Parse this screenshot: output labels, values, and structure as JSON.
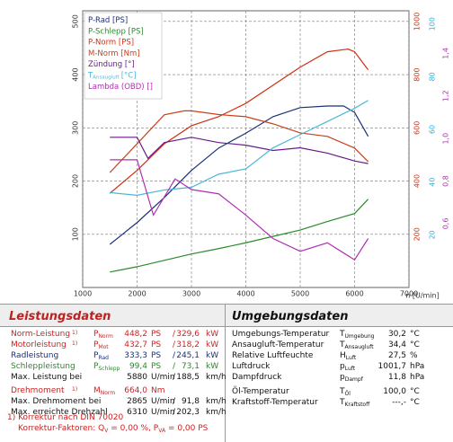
{
  "chart_data": {
    "type": "line",
    "grid": true,
    "xlabel": "n [U/min]",
    "xlim": [
      1000,
      7000
    ],
    "xticks": [
      1000,
      2000,
      3000,
      4000,
      5000,
      6000,
      7000
    ],
    "ylim": [
      0,
      520
    ],
    "yticks": [
      100,
      200,
      300,
      400,
      500
    ],
    "y2lim": [
      0,
      105
    ],
    "y2ticks": [
      20,
      40,
      60,
      80,
      100
    ],
    "y2color": "#3aaed0",
    "y3lim": [
      0,
      1040
    ],
    "y3ticks": [
      200,
      400,
      600,
      800,
      1000
    ],
    "y3color": "#d03010",
    "y4lim": [
      0.3,
      1.6
    ],
    "y4ticks": [
      {
        "value": 0.6,
        "label": "0,6"
      },
      {
        "value": 0.8,
        "label": "0,8"
      },
      {
        "value": 1.0,
        "label": "1,0"
      },
      {
        "value": 1.2,
        "label": "1,2"
      },
      {
        "value": 1.4,
        "label": "1,4"
      }
    ],
    "y4color": "#b030b0",
    "series": [
      {
        "name": "P-Rad [PS]",
        "color": "#1c2f7a",
        "axis": "y",
        "x": [
          1500,
          2000,
          2500,
          3000,
          3500,
          4000,
          4500,
          5000,
          5500,
          5800,
          6000,
          6250
        ],
        "values": [
          81,
          122,
          169,
          220,
          262,
          290,
          321,
          338,
          341,
          341,
          329,
          284
        ]
      },
      {
        "name": "P-Schlepp [PS]",
        "color": "#2a8a2a",
        "axis": "y",
        "x": [
          1500,
          2000,
          2500,
          3000,
          3500,
          4000,
          4500,
          5000,
          5500,
          6000,
          6250
        ],
        "values": [
          29,
          39,
          51,
          63,
          73,
          84,
          96,
          108,
          124,
          139,
          166
        ]
      },
      {
        "name": "P-Norm [PS]",
        "color": "#d03010",
        "axis": "y",
        "x": [
          1500,
          2000,
          2500,
          3000,
          3500,
          4000,
          4500,
          5000,
          5500,
          5880,
          6000,
          6250
        ],
        "values": [
          177,
          220,
          270,
          304,
          321,
          346,
          380,
          414,
          443,
          448,
          443,
          409
        ]
      },
      {
        "name": "M-Norm [Nm]",
        "color": "#c8401c",
        "axis": "y3",
        "x": [
          1500,
          2000,
          2500,
          2865,
          3000,
          3500,
          4000,
          4500,
          5000,
          5500,
          6000,
          6250
        ],
        "values": [
          432,
          540,
          649,
          664,
          664,
          650,
          642,
          615,
          581,
          568,
          524,
          473
        ]
      },
      {
        "name": "Zündung [°]",
        "color": "#6a1b8a",
        "axis": "y2",
        "x": [
          1500,
          2000,
          2200,
          2500,
          3000,
          3500,
          4000,
          4500,
          5000,
          5500,
          6000,
          6250
        ],
        "values": [
          57,
          57,
          49,
          55,
          57,
          55,
          54,
          52,
          53,
          51,
          48,
          47
        ]
      },
      {
        "name": "T",
        "name_sub": "Ansaugluft",
        "name_unit": "[°C]",
        "color": "#4ab8d8",
        "axis": "y2",
        "x": [
          1500,
          2000,
          2500,
          3000,
          3500,
          4000,
          4500,
          5000,
          5500,
          6000,
          6250
        ],
        "values": [
          36,
          35,
          37,
          38,
          43,
          45,
          53,
          58,
          63,
          68,
          71
        ]
      },
      {
        "name": "Lambda (OBD) []",
        "color": "#b030b0",
        "axis": "y4",
        "x": [
          1500,
          2000,
          2300,
          2700,
          3000,
          3500,
          4000,
          4500,
          5000,
          5500,
          6000,
          6250
        ],
        "values": [
          0.9,
          0.9,
          0.64,
          0.81,
          0.76,
          0.74,
          0.64,
          0.53,
          0.47,
          0.51,
          0.43,
          0.53
        ]
      }
    ]
  },
  "leistungsdaten": {
    "title": "Leistungsdaten",
    "rows": [
      {
        "color": "#d02020",
        "label": "Norm-Leistung",
        "note": "1)",
        "sym": "P",
        "sub": "Norm",
        "value": "448,2",
        "unit": "PS",
        "sep": "/",
        "value2": "329,6",
        "unit2": "kW"
      },
      {
        "color": "#d02020",
        "label": "Motorleistung",
        "note": "1)",
        "sym": "P",
        "sub": "Mot",
        "value": "432,7",
        "unit": "PS",
        "sep": "/",
        "value2": "318,2",
        "unit2": "kW"
      },
      {
        "color": "#1c2f7a",
        "label": "Radleistung",
        "sym": "P",
        "sub": "Rad",
        "value": "333,3",
        "unit": "PS",
        "sep": "/",
        "value2": "245,1",
        "unit2": "kW"
      },
      {
        "color": "#2a8a2a",
        "label": "Schleppleistung",
        "sym": "P",
        "sub": "Schlepp",
        "value": "99,4",
        "unit": "PS",
        "sep": "/",
        "value2": "73,1",
        "unit2": "kW"
      },
      {
        "color": "#111111",
        "label": "Max. Leistung bei",
        "value": "5880",
        "unit": "U/min",
        "sep": "/",
        "value2": "188,5",
        "unit2": "km/h"
      },
      {
        "color": "#d02020",
        "label": "Drehmoment",
        "note": "1)",
        "sym": "M",
        "sub": "Norm",
        "value": "664,0",
        "unit": "Nm"
      },
      {
        "color": "#111111",
        "label": "Max. Drehmoment bei",
        "value": "2865",
        "unit": "U/min",
        "sep": "/",
        "value2": "91,8",
        "unit2": "km/h"
      },
      {
        "color": "#111111",
        "label": "Max. erreichte Drehzahl",
        "value": "6310",
        "unit": "U/min",
        "sep": "/",
        "value2": "202,3",
        "unit2": "km/h"
      }
    ],
    "footnote": "1) Korrektur nach DIN 70020",
    "factors": {
      "label": "Korrektur-Faktoren:",
      "q": "Q",
      "q_sub": "V",
      "q_text": "= 0,00 %,",
      "p": "P",
      "p_sub": "VA",
      "p_text": "= 0,00 PS"
    }
  },
  "umgebungsdaten": {
    "title": "Umgebungsdaten",
    "rows": [
      {
        "label": "Umgebungs-Temperatur",
        "sym": "T",
        "sub": "Umgebung",
        "value": "30,2",
        "unit": "°C"
      },
      {
        "label": "Ansaugluft-Temperatur",
        "sym": "T",
        "sub": "Ansaugluft",
        "value": "34,4",
        "unit": "°C"
      },
      {
        "label": "Relative Luftfeuchte",
        "sym": "H",
        "sub": "Luft",
        "value": "27,5",
        "unit": "%"
      },
      {
        "label": "Luftdruck",
        "sym": "p",
        "sub": "Luft",
        "value": "1001,7",
        "unit": "hPa"
      },
      {
        "label": "Dampfdruck",
        "sym": "p",
        "sub": "Dampf",
        "value": "11,8",
        "unit": "hPa"
      },
      {
        "label": "Öl-Temperatur",
        "sym": "T",
        "sub": "Öl",
        "value": "100,0",
        "unit": "°C"
      },
      {
        "label": "Kraftstoff-Temperatur",
        "sym": "T",
        "sub": "Kraftstoff",
        "value": "---,-",
        "unit": "°C"
      }
    ]
  }
}
